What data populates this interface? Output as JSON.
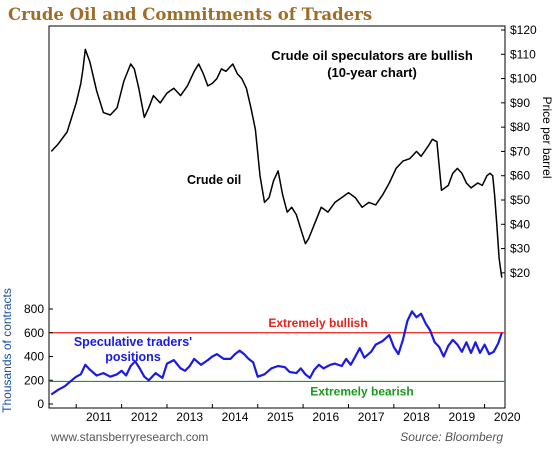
{
  "chart_data": {
    "type": "line",
    "title": "Crude Oil and Commitments of Traders",
    "annotation": "Crude oil speculators are bullish\n(10-year chart)",
    "x_tick_labels": [
      "2011",
      "2012",
      "2013",
      "2014",
      "2015",
      "2016",
      "2017",
      "2018",
      "2019",
      "2020"
    ],
    "xlim": [
      2010.4,
      2020.45
    ],
    "price_axis": {
      "label": "Price per barrel",
      "tick_labels": [
        "$20",
        "$30",
        "$40",
        "$50",
        "$60",
        "$70",
        "$80",
        "$90",
        "$100",
        "$110",
        "$120"
      ],
      "ticks": [
        20,
        30,
        40,
        50,
        60,
        70,
        80,
        90,
        100,
        110,
        120
      ],
      "ylim": [
        15,
        120
      ]
    },
    "positions_axis": {
      "label": "Thousands of contracts",
      "tick_labels": [
        "0",
        "200",
        "400",
        "600",
        "800"
      ],
      "ticks": [
        0,
        200,
        400,
        600,
        800
      ],
      "ylim": [
        0,
        800
      ]
    },
    "reference_lines": [
      {
        "label": "Extremely bullish",
        "value": 600,
        "color": "#e8201a"
      },
      {
        "label": "Extremely bearish",
        "value": 190,
        "color": "#1a9a1a"
      }
    ],
    "series": [
      {
        "name": "Crude oil",
        "axis": "price",
        "color": "#000000",
        "x": [
          2010.45,
          2010.6,
          2010.8,
          2010.9,
          2011.0,
          2011.1,
          2011.15,
          2011.2,
          2011.3,
          2011.45,
          2011.6,
          2011.75,
          2011.9,
          2012.05,
          2012.2,
          2012.28,
          2012.38,
          2012.5,
          2012.6,
          2012.7,
          2012.85,
          2013.0,
          2013.15,
          2013.3,
          2013.45,
          2013.6,
          2013.7,
          2013.8,
          2013.9,
          2014.0,
          2014.1,
          2014.2,
          2014.3,
          2014.45,
          2014.55,
          2014.65,
          2014.75,
          2014.85,
          2014.95,
          2015.05,
          2015.15,
          2015.25,
          2015.35,
          2015.45,
          2015.55,
          2015.65,
          2015.75,
          2015.85,
          2015.95,
          2016.05,
          2016.12,
          2016.25,
          2016.4,
          2016.55,
          2016.7,
          2016.85,
          2017.0,
          2017.15,
          2017.3,
          2017.45,
          2017.6,
          2017.75,
          2017.9,
          2018.05,
          2018.2,
          2018.35,
          2018.5,
          2018.6,
          2018.75,
          2018.85,
          2018.95,
          2019.05,
          2019.2,
          2019.3,
          2019.4,
          2019.5,
          2019.6,
          2019.7,
          2019.85,
          2019.95,
          2020.05,
          2020.12,
          2020.18,
          2020.22,
          2020.27,
          2020.32,
          2020.38
        ],
        "values": [
          70,
          73,
          78,
          84,
          90,
          98,
          104,
          112,
          107,
          95,
          86,
          85,
          88,
          99,
          106,
          104,
          96,
          84,
          88,
          93,
          90,
          94,
          96,
          93,
          97,
          103,
          106,
          102,
          97,
          98,
          100,
          104,
          103,
          106,
          102,
          100,
          96,
          88,
          79,
          60,
          49,
          51,
          58,
          62,
          52,
          45,
          47,
          44,
          38,
          32,
          34,
          40,
          47,
          45,
          49,
          51,
          53,
          51,
          47,
          49,
          48,
          52,
          57,
          63,
          66,
          67,
          70,
          68,
          72,
          75,
          74,
          54,
          56,
          61,
          63,
          61,
          57,
          55,
          57,
          56,
          60,
          61,
          60,
          52,
          40,
          26,
          18
        ]
      },
      {
        "name": "Speculative traders' positions",
        "axis": "positions",
        "color": "#1a1ae6",
        "x": [
          2010.45,
          2010.6,
          2010.75,
          2010.9,
          2011.0,
          2011.1,
          2011.2,
          2011.3,
          2011.45,
          2011.6,
          2011.75,
          2011.9,
          2012.0,
          2012.1,
          2012.2,
          2012.3,
          2012.4,
          2012.5,
          2012.6,
          2012.75,
          2012.9,
          2013.0,
          2013.15,
          2013.3,
          2013.4,
          2013.5,
          2013.6,
          2013.75,
          2013.9,
          2014.0,
          2014.1,
          2014.25,
          2014.4,
          2014.5,
          2014.6,
          2014.7,
          2014.8,
          2014.9,
          2015.0,
          2015.15,
          2015.3,
          2015.45,
          2015.6,
          2015.7,
          2015.85,
          2015.95,
          2016.05,
          2016.15,
          2016.25,
          2016.35,
          2016.45,
          2016.6,
          2016.7,
          2016.85,
          2016.95,
          2017.05,
          2017.15,
          2017.25,
          2017.35,
          2017.5,
          2017.6,
          2017.75,
          2017.9,
          2018.0,
          2018.1,
          2018.2,
          2018.3,
          2018.4,
          2018.5,
          2018.6,
          2018.7,
          2018.8,
          2018.9,
          2019.0,
          2019.1,
          2019.2,
          2019.3,
          2019.4,
          2019.5,
          2019.6,
          2019.7,
          2019.8,
          2019.9,
          2020.0,
          2020.1,
          2020.2,
          2020.3,
          2020.38
        ],
        "values": [
          80,
          120,
          150,
          200,
          230,
          250,
          330,
          290,
          240,
          260,
          230,
          250,
          280,
          240,
          320,
          360,
          300,
          230,
          200,
          260,
          220,
          340,
          370,
          300,
          280,
          320,
          380,
          330,
          370,
          400,
          420,
          380,
          380,
          420,
          450,
          420,
          380,
          350,
          230,
          250,
          300,
          320,
          310,
          270,
          260,
          300,
          250,
          220,
          290,
          330,
          300,
          330,
          340,
          320,
          380,
          330,
          400,
          470,
          390,
          440,
          500,
          530,
          580,
          480,
          420,
          540,
          700,
          780,
          730,
          760,
          680,
          620,
          520,
          480,
          400,
          490,
          540,
          500,
          440,
          520,
          430,
          520,
          430,
          500,
          420,
          440,
          510,
          600
        ]
      }
    ],
    "series_labels": [
      "Crude oil",
      "Speculative traders'\npositions"
    ],
    "footer": {
      "left": "www.stansberryresearch.com",
      "right": "Source: Bloomberg"
    }
  }
}
